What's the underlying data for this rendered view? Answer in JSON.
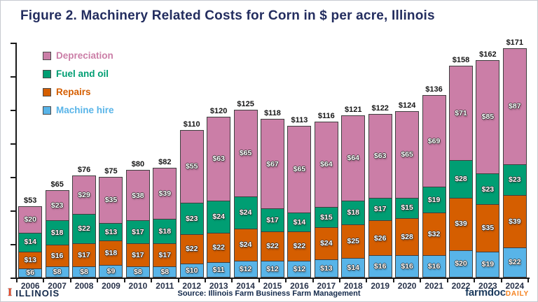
{
  "title": "Figure 2. Machinery Related Costs for Corn in $ per acre, Illinois",
  "chart_data": {
    "type": "bar",
    "stacked": true,
    "title": "Figure 2. Machinery Related Costs for Corn in $ per acre, Illinois",
    "value_prefix": "$",
    "categories": [
      "2006",
      "2007",
      "2008",
      "2009",
      "2010",
      "2011",
      "2012",
      "2013",
      "2014",
      "2015",
      "2016",
      "2017",
      "2018",
      "2019",
      "2020",
      "2021",
      "2022",
      "2023",
      "2024"
    ],
    "series": [
      {
        "name": "Machine hire",
        "color": "#58b4e8",
        "values": [
          6,
          8,
          8,
          9,
          8,
          8,
          10,
          11,
          12,
          12,
          12,
          13,
          14,
          16,
          16,
          16,
          20,
          19,
          22
        ]
      },
      {
        "name": "Repairs",
        "color": "#d55e00",
        "values": [
          13,
          16,
          17,
          18,
          17,
          17,
          22,
          22,
          24,
          22,
          22,
          24,
          25,
          26,
          28,
          32,
          39,
          35,
          39
        ]
      },
      {
        "name": "Fuel and oil",
        "color": "#009e73",
        "values": [
          14,
          18,
          22,
          13,
          17,
          18,
          23,
          24,
          24,
          17,
          14,
          15,
          18,
          17,
          15,
          19,
          28,
          23,
          23
        ]
      },
      {
        "name": "Depreciation",
        "color": "#cb7ea7",
        "values": [
          20,
          23,
          29,
          35,
          38,
          39,
          55,
          63,
          65,
          67,
          65,
          64,
          64,
          63,
          65,
          69,
          71,
          85,
          87
        ]
      }
    ],
    "totals": [
      53,
      65,
      76,
      75,
      80,
      82,
      110,
      120,
      125,
      118,
      113,
      116,
      121,
      122,
      124,
      136,
      158,
      162,
      171
    ],
    "legend_order": [
      "Depreciation",
      "Fuel and oil",
      "Repairs",
      "Machine hire"
    ],
    "legend_position": "top-left",
    "xlabel": "",
    "ylabel": "",
    "ylim": [
      0,
      175
    ],
    "y_tick_step": 25,
    "y_tick_labels_visible": false,
    "grid": false
  },
  "footer": {
    "block_i_glyph": "I",
    "university": "ILLINOIS",
    "source": "Source: Illinois Farm Business Farm Management",
    "brand_primary": "farmdoc",
    "brand_accent": "DAILY"
  },
  "colors": {
    "title_navy": "#232d5f",
    "axis": "#1a1a1a",
    "footer_navy": "#13294b",
    "footer_orange": "#e84a27",
    "brand_orange": "#f5821f",
    "depreciation": "#cb7ea7",
    "fuel_and_oil": "#009e73",
    "repairs": "#d55e00",
    "machine_hire": "#58b4e8"
  }
}
